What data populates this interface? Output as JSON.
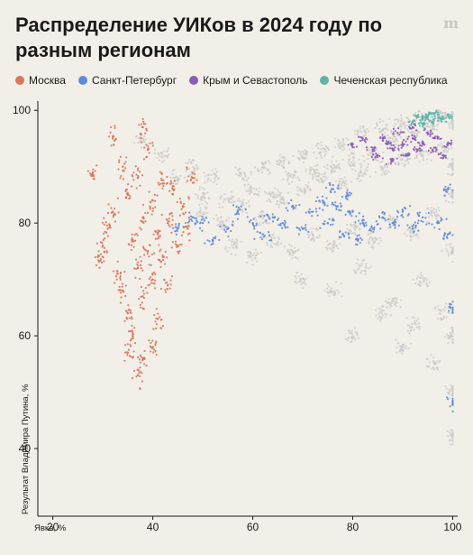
{
  "header": {
    "title": "Распределение УИКов в 2024 году по разным регионам",
    "logo": "m"
  },
  "chart_data": {
    "type": "scatter",
    "title": "Распределение УИКов в 2024 году по разным регионам",
    "xlabel": "Явка, %",
    "ylabel": "Результат Владимира Путина, %",
    "xlim": [
      17,
      101
    ],
    "ylim": [
      28,
      101
    ],
    "x_ticks": [
      20,
      40,
      60,
      80,
      100
    ],
    "y_ticks": [
      40,
      60,
      80,
      100
    ],
    "grid": false,
    "legend_position": "top-left",
    "background_color": "#c8c8c8",
    "series": [
      {
        "name": "Москва",
        "color": "#d9765a",
        "values": [
          [
            28,
            89
          ],
          [
            29,
            74
          ],
          [
            30,
            76
          ],
          [
            31,
            79
          ],
          [
            32,
            82
          ],
          [
            33,
            71
          ],
          [
            34,
            68
          ],
          [
            34,
            90
          ],
          [
            35,
            85
          ],
          [
            35,
            64
          ],
          [
            36,
            77
          ],
          [
            36,
            60
          ],
          [
            37,
            72
          ],
          [
            37,
            88
          ],
          [
            38,
            81
          ],
          [
            38,
            67
          ],
          [
            39,
            75
          ],
          [
            39,
            93
          ],
          [
            40,
            70
          ],
          [
            40,
            84
          ],
          [
            41,
            78
          ],
          [
            41,
            63
          ],
          [
            42,
            74
          ],
          [
            42,
            87
          ],
          [
            43,
            80
          ],
          [
            43,
            69
          ],
          [
            44,
            86
          ],
          [
            45,
            76
          ],
          [
            46,
            83
          ],
          [
            47,
            79
          ],
          [
            48,
            88
          ],
          [
            38,
            56
          ],
          [
            37,
            53
          ],
          [
            35,
            57
          ],
          [
            40,
            58
          ],
          [
            32,
            95
          ],
          [
            38,
            97
          ]
        ]
      },
      {
        "name": "Санкт-Петербург",
        "color": "#5f8bd6",
        "values": [
          [
            45,
            79
          ],
          [
            48,
            81
          ],
          [
            50,
            80
          ],
          [
            52,
            77
          ],
          [
            55,
            79
          ],
          [
            57,
            82
          ],
          [
            60,
            80
          ],
          [
            62,
            78
          ],
          [
            64,
            81
          ],
          [
            66,
            80
          ],
          [
            68,
            83
          ],
          [
            70,
            79
          ],
          [
            72,
            82
          ],
          [
            74,
            84
          ],
          [
            75,
            80
          ],
          [
            76,
            86
          ],
          [
            77,
            83
          ],
          [
            78,
            78
          ],
          [
            79,
            85
          ],
          [
            80,
            82
          ],
          [
            81,
            77
          ],
          [
            82,
            80
          ],
          [
            84,
            79
          ],
          [
            86,
            81
          ],
          [
            88,
            80
          ],
          [
            90,
            82
          ],
          [
            92,
            79
          ],
          [
            94,
            81
          ],
          [
            97,
            80
          ],
          [
            99,
            78
          ],
          [
            100,
            65
          ],
          [
            100,
            48
          ],
          [
            99,
            86
          ]
        ]
      },
      {
        "name": "Крым и Севастополь",
        "color": "#8a5cb8",
        "values": [
          [
            80,
            94
          ],
          [
            82,
            95
          ],
          [
            84,
            93
          ],
          [
            85,
            92
          ],
          [
            86,
            95
          ],
          [
            87,
            94
          ],
          [
            88,
            93
          ],
          [
            89,
            96
          ],
          [
            90,
            94
          ],
          [
            91,
            92
          ],
          [
            92,
            95
          ],
          [
            93,
            93
          ],
          [
            94,
            94
          ],
          [
            95,
            96
          ],
          [
            96,
            93
          ],
          [
            97,
            95
          ],
          [
            98,
            92
          ],
          [
            99,
            94
          ],
          [
            88,
            91
          ],
          [
            92,
            97
          ]
        ]
      },
      {
        "name": "Чеченская республика",
        "color": "#5fb3a8",
        "values": [
          [
            92,
            98
          ],
          [
            93,
            99
          ],
          [
            94,
            98.5
          ],
          [
            95,
            99
          ],
          [
            96,
            98
          ],
          [
            97,
            99.2
          ],
          [
            98,
            98.5
          ],
          [
            99,
            99
          ],
          [
            94,
            97.5
          ],
          [
            96,
            99.4
          ]
        ]
      }
    ],
    "background_points": [
      [
        38,
        95
      ],
      [
        42,
        92
      ],
      [
        45,
        88
      ],
      [
        48,
        90
      ],
      [
        50,
        85
      ],
      [
        52,
        88
      ],
      [
        55,
        84
      ],
      [
        58,
        89
      ],
      [
        60,
        86
      ],
      [
        62,
        90
      ],
      [
        64,
        85
      ],
      [
        66,
        91
      ],
      [
        68,
        88
      ],
      [
        70,
        92
      ],
      [
        72,
        89
      ],
      [
        74,
        93
      ],
      [
        76,
        90
      ],
      [
        78,
        94
      ],
      [
        80,
        91
      ],
      [
        82,
        96
      ],
      [
        84,
        92
      ],
      [
        86,
        97
      ],
      [
        88,
        95
      ],
      [
        90,
        98
      ],
      [
        92,
        96
      ],
      [
        94,
        99
      ],
      [
        96,
        97
      ],
      [
        98,
        99
      ],
      [
        100,
        98
      ],
      [
        50,
        82
      ],
      [
        54,
        80
      ],
      [
        58,
        83
      ],
      [
        62,
        81
      ],
      [
        66,
        84
      ],
      [
        70,
        86
      ],
      [
        74,
        88
      ],
      [
        78,
        87
      ],
      [
        82,
        89
      ],
      [
        86,
        90
      ],
      [
        90,
        91
      ],
      [
        94,
        92
      ],
      [
        98,
        93
      ],
      [
        100,
        90
      ],
      [
        56,
        76
      ],
      [
        60,
        74
      ],
      [
        64,
        77
      ],
      [
        68,
        75
      ],
      [
        72,
        78
      ],
      [
        76,
        76
      ],
      [
        80,
        79
      ],
      [
        84,
        77
      ],
      [
        88,
        80
      ],
      [
        92,
        78
      ],
      [
        96,
        82
      ],
      [
        100,
        85
      ],
      [
        70,
        70
      ],
      [
        76,
        68
      ],
      [
        82,
        72
      ],
      [
        88,
        66
      ],
      [
        94,
        70
      ],
      [
        100,
        75
      ],
      [
        80,
        60
      ],
      [
        90,
        58
      ],
      [
        96,
        55
      ],
      [
        100,
        60
      ],
      [
        100,
        50
      ],
      [
        100,
        42
      ],
      [
        98,
        64
      ],
      [
        92,
        62
      ],
      [
        86,
        64
      ]
    ]
  }
}
